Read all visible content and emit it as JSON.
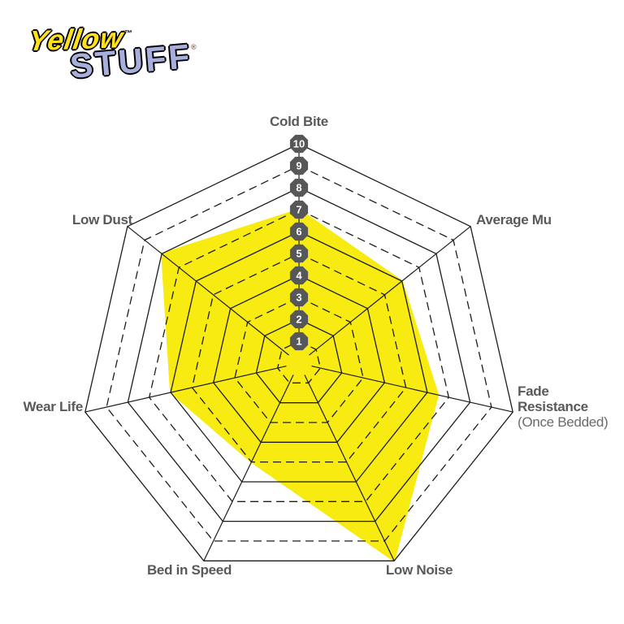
{
  "page": {
    "background": "#FFFFFF"
  },
  "logo": {
    "line1": "Yellow",
    "line1_mark": "™",
    "line2": "STUFF",
    "line2_mark": "®",
    "line1_color": "#FFE01A",
    "line2_color": "#A9AFDC"
  },
  "axis_labels": {
    "cold_bite": "Cold Bite",
    "average_mu": "Average Mu",
    "fade_resistance": "Fade Resistance",
    "fade_resistance_sub": "(Once Bedded)",
    "low_noise": "Low Noise",
    "bed_in_speed": "Bed in Speed",
    "wear_life": "Wear Life",
    "low_dust": "Low Dust"
  },
  "chart_data": {
    "type": "radar",
    "title": "",
    "categories": [
      "Cold Bite",
      "Average Mu",
      "Fade Resistance (Once Bedded)",
      "Low Noise",
      "Bed in Speed",
      "Wear Life",
      "Low Dust"
    ],
    "values": [
      7,
      6,
      6.5,
      10,
      5,
      6,
      8
    ],
    "scale": {
      "min": 0,
      "max": 10,
      "ticks": [
        1,
        2,
        3,
        4,
        5,
        6,
        7,
        8,
        9,
        10
      ]
    },
    "layout_hints": {
      "rings": 10,
      "odd_rings_dashed": true,
      "even_rings_solid": true,
      "tick_badges_on_axis": "Cold Bite",
      "legend": "none",
      "start_axis": "top",
      "direction": "clockwise"
    },
    "colors": {
      "fill": "#F7EB12",
      "grid_line": "#1D1D1B",
      "label": "#58595B",
      "badge_fill": "#565759",
      "badge_text": "#FFFFFF"
    }
  }
}
